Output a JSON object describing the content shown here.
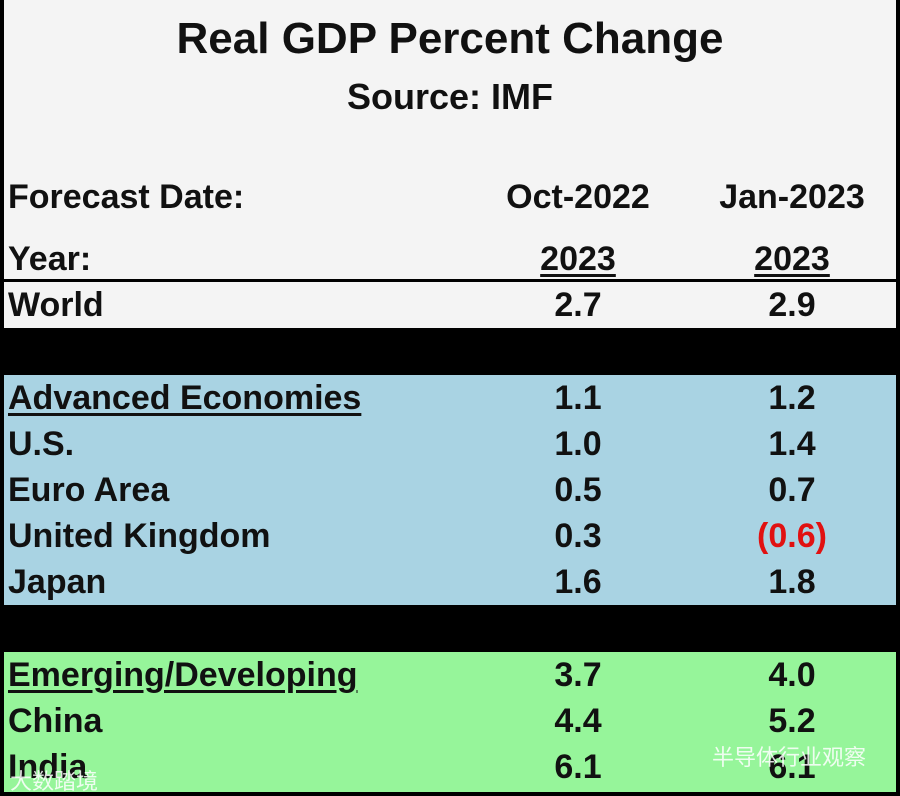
{
  "chart_data": {
    "type": "table",
    "title": "Real GDP Percent Change",
    "subtitle": "Source:  IMF",
    "header": {
      "forecast_label": "Forecast Date:",
      "year_label": "Year:",
      "columns": [
        {
          "forecast_date": "Oct-2022",
          "year": "2023"
        },
        {
          "forecast_date": "Jan-2023",
          "year": "2023"
        }
      ]
    },
    "groups": [
      {
        "fill": "#f4f4f4",
        "rows": [
          {
            "label": "World",
            "values": [
              "2.7",
              "2.9"
            ],
            "heading": false
          }
        ]
      },
      {
        "fill": "#a9d3e3",
        "rows": [
          {
            "label": "Advanced Economies",
            "values": [
              "1.1",
              "1.2"
            ],
            "heading": true
          },
          {
            "label": "U.S.",
            "values": [
              "1.0",
              "1.4"
            ],
            "heading": false
          },
          {
            "label": "Euro Area",
            "values": [
              "0.5",
              "0.7"
            ],
            "heading": false
          },
          {
            "label": "United Kingdom",
            "values": [
              "0.3",
              "(0.6)"
            ],
            "heading": false
          },
          {
            "label": "Japan",
            "values": [
              "1.6",
              "1.8"
            ],
            "heading": false
          }
        ]
      },
      {
        "fill": "#96f59a",
        "rows": [
          {
            "label": "Emerging/Developing",
            "values": [
              "3.7",
              "4.0"
            ],
            "heading": true
          },
          {
            "label": "China",
            "values": [
              "4.4",
              "5.2"
            ],
            "heading": false
          },
          {
            "label": "India",
            "values": [
              "6.1",
              "6.1"
            ],
            "heading": false
          }
        ]
      }
    ],
    "negative_color": "#e11111"
  },
  "watermarks": {
    "left": "大数踏境",
    "right": "半导体行业观察"
  }
}
